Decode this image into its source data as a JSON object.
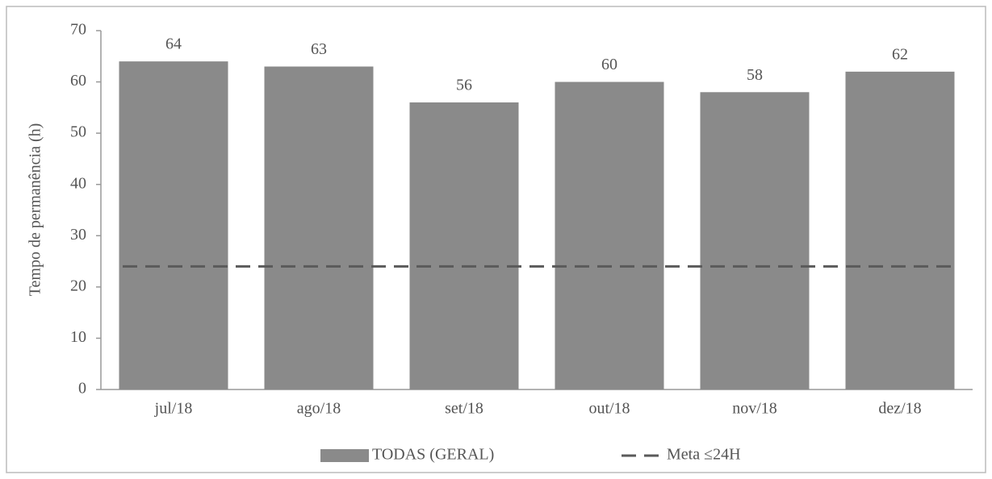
{
  "chart_data": {
    "type": "bar",
    "ylabel": "Tempo de permanência (h)",
    "categories": [
      "jul/18",
      "ago/18",
      "set/18",
      "out/18",
      "nov/18",
      "dez/18"
    ],
    "series": [
      {
        "name": "TODAS (GERAL)",
        "color": "#8a8a8a",
        "values": [
          64,
          63,
          56,
          60,
          58,
          62
        ]
      },
      {
        "name": "Meta ≤24H",
        "type": "line",
        "dashed": true,
        "color": "#5a5a5a",
        "values": [
          24,
          24,
          24,
          24,
          24,
          24
        ]
      }
    ],
    "ylim": [
      0,
      70
    ],
    "yticks": [
      0,
      10,
      20,
      30,
      40,
      50,
      60,
      70
    ],
    "grid": false,
    "legend": "bottom"
  }
}
